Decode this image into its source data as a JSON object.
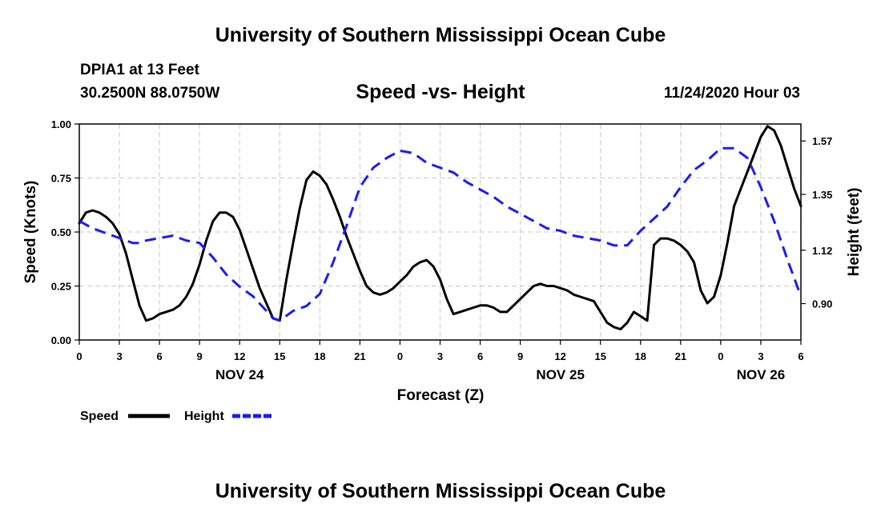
{
  "header": {
    "title": "University of Southern Mississippi Ocean Cube",
    "station": "DPIA1 at 13 Feet",
    "coordinates": "30.2500N 88.0750W",
    "datetime": "11/24/2020 Hour 03"
  },
  "footer": {
    "title": "University of Southern Mississippi Ocean Cube"
  },
  "chart_data": {
    "type": "line",
    "title": "Speed -vs- Height",
    "xlabel": "Forecast (Z)",
    "ylabel": "Speed (Knots)",
    "y2label": "Height (feet)",
    "xlim": [
      0,
      54
    ],
    "ylim": [
      0,
      1.0
    ],
    "y2lim": [
      0.75,
      1.64
    ],
    "grid": true,
    "xticks": [
      {
        "x": 0,
        "label": "0"
      },
      {
        "x": 3,
        "label": "3"
      },
      {
        "x": 6,
        "label": "6"
      },
      {
        "x": 9,
        "label": "9"
      },
      {
        "x": 12,
        "label": "12"
      },
      {
        "x": 15,
        "label": "15"
      },
      {
        "x": 18,
        "label": "18"
      },
      {
        "x": 21,
        "label": "21"
      },
      {
        "x": 24,
        "label": "0"
      },
      {
        "x": 27,
        "label": "3"
      },
      {
        "x": 30,
        "label": "6"
      },
      {
        "x": 33,
        "label": "9"
      },
      {
        "x": 36,
        "label": "12"
      },
      {
        "x": 39,
        "label": "15"
      },
      {
        "x": 42,
        "label": "18"
      },
      {
        "x": 45,
        "label": "21"
      },
      {
        "x": 48,
        "label": "0"
      },
      {
        "x": 51,
        "label": "3"
      },
      {
        "x": 54,
        "label": "6"
      }
    ],
    "yticks": [
      {
        "y": 0.0,
        "label": "0.00"
      },
      {
        "y": 0.25,
        "label": "0.25"
      },
      {
        "y": 0.5,
        "label": "0.50"
      },
      {
        "y": 0.75,
        "label": "0.75"
      },
      {
        "y": 1.0,
        "label": "1.00"
      }
    ],
    "y2ticks": [
      {
        "y": 0.9,
        "label": "0.90"
      },
      {
        "y": 1.12,
        "label": "1.12"
      },
      {
        "y": 1.35,
        "label": "1.35"
      },
      {
        "y": 1.57,
        "label": "1.57"
      }
    ],
    "day_labels": [
      {
        "x": 12,
        "label": "NOV 24"
      },
      {
        "x": 36,
        "label": "NOV 25"
      },
      {
        "x": 51,
        "label": "NOV 26"
      }
    ],
    "legend": [
      {
        "name": "Speed",
        "color": "#000000",
        "dash": "solid"
      },
      {
        "name": "Height",
        "color": "#1a1aff",
        "dash": "dashed"
      }
    ],
    "series": [
      {
        "name": "Speed",
        "axis": "left",
        "color": "#000000",
        "x": [
          0,
          0.5,
          1,
          1.5,
          2,
          2.5,
          3,
          3.5,
          4,
          4.5,
          5,
          5.5,
          6,
          7,
          7.5,
          8,
          8.5,
          9,
          9.5,
          10,
          10.5,
          11,
          11.5,
          12,
          12.5,
          13,
          13.5,
          14,
          14.5,
          15,
          15.5,
          16,
          16.5,
          17,
          17.5,
          18,
          18.5,
          19,
          19.5,
          20,
          20.5,
          21,
          21.5,
          22,
          22.5,
          23,
          23.5,
          24,
          24.5,
          25,
          25.5,
          26,
          26.5,
          27,
          27.5,
          28,
          28.5,
          29,
          29.5,
          30,
          30.5,
          31,
          31.5,
          32,
          32.5,
          33,
          33.5,
          34,
          34.5,
          35,
          35.5,
          36,
          36.5,
          37,
          37.5,
          38,
          38.5,
          39,
          39.5,
          40,
          40.5,
          41,
          41.5,
          42,
          42.5,
          43,
          43.5,
          44,
          44.5,
          45,
          45.5,
          46,
          46.5,
          47,
          47.5,
          48,
          48.5,
          49,
          49.5,
          50,
          50.5,
          51,
          51.5,
          52,
          52.5,
          53,
          53.5,
          54
        ],
        "values": [
          0.54,
          0.59,
          0.6,
          0.59,
          0.57,
          0.54,
          0.49,
          0.4,
          0.28,
          0.16,
          0.09,
          0.1,
          0.12,
          0.14,
          0.16,
          0.2,
          0.26,
          0.35,
          0.46,
          0.55,
          0.59,
          0.59,
          0.57,
          0.51,
          0.42,
          0.33,
          0.24,
          0.17,
          0.1,
          0.09,
          0.28,
          0.45,
          0.61,
          0.74,
          0.78,
          0.76,
          0.72,
          0.65,
          0.57,
          0.48,
          0.4,
          0.32,
          0.25,
          0.22,
          0.21,
          0.22,
          0.24,
          0.27,
          0.3,
          0.34,
          0.36,
          0.37,
          0.34,
          0.28,
          0.19,
          0.12,
          0.13,
          0.14,
          0.15,
          0.16,
          0.16,
          0.15,
          0.13,
          0.13,
          0.16,
          0.19,
          0.22,
          0.25,
          0.26,
          0.25,
          0.25,
          0.24,
          0.23,
          0.21,
          0.2,
          0.19,
          0.18,
          0.13,
          0.08,
          0.06,
          0.05,
          0.08,
          0.13,
          0.11,
          0.09,
          0.44,
          0.47,
          0.47,
          0.46,
          0.44,
          0.41,
          0.36,
          0.23,
          0.17,
          0.2,
          0.3,
          0.45,
          0.62,
          0.7,
          0.78,
          0.86,
          0.94,
          0.99,
          0.97,
          0.9,
          0.8,
          0.7,
          0.62
        ]
      },
      {
        "name": "Height",
        "axis": "right",
        "color": "#1a1aff",
        "x": [
          0,
          1,
          2,
          3,
          3.5,
          4,
          4.5,
          5,
          6,
          7,
          8,
          9,
          10,
          11,
          12,
          13,
          14,
          14.5,
          15,
          15.5,
          16,
          17,
          18,
          19,
          20,
          21,
          22,
          23,
          24,
          25,
          26,
          27,
          28,
          29,
          30,
          31,
          32,
          33,
          34,
          35,
          36,
          37,
          38,
          39,
          40,
          41,
          42,
          43,
          44,
          45,
          46,
          47,
          48,
          49,
          50,
          51,
          52,
          53,
          54
        ],
        "values": [
          1.24,
          1.21,
          1.19,
          1.17,
          1.16,
          1.15,
          1.15,
          1.16,
          1.17,
          1.18,
          1.16,
          1.15,
          1.09,
          1.02,
          0.97,
          0.93,
          0.87,
          0.84,
          0.83,
          0.85,
          0.87,
          0.89,
          0.94,
          1.07,
          1.22,
          1.38,
          1.46,
          1.5,
          1.53,
          1.52,
          1.48,
          1.46,
          1.44,
          1.4,
          1.37,
          1.34,
          1.3,
          1.27,
          1.24,
          1.21,
          1.2,
          1.18,
          1.17,
          1.16,
          1.14,
          1.14,
          1.2,
          1.25,
          1.3,
          1.38,
          1.45,
          1.49,
          1.54,
          1.54,
          1.5,
          1.38,
          1.24,
          1.08,
          0.93
        ]
      }
    ]
  }
}
